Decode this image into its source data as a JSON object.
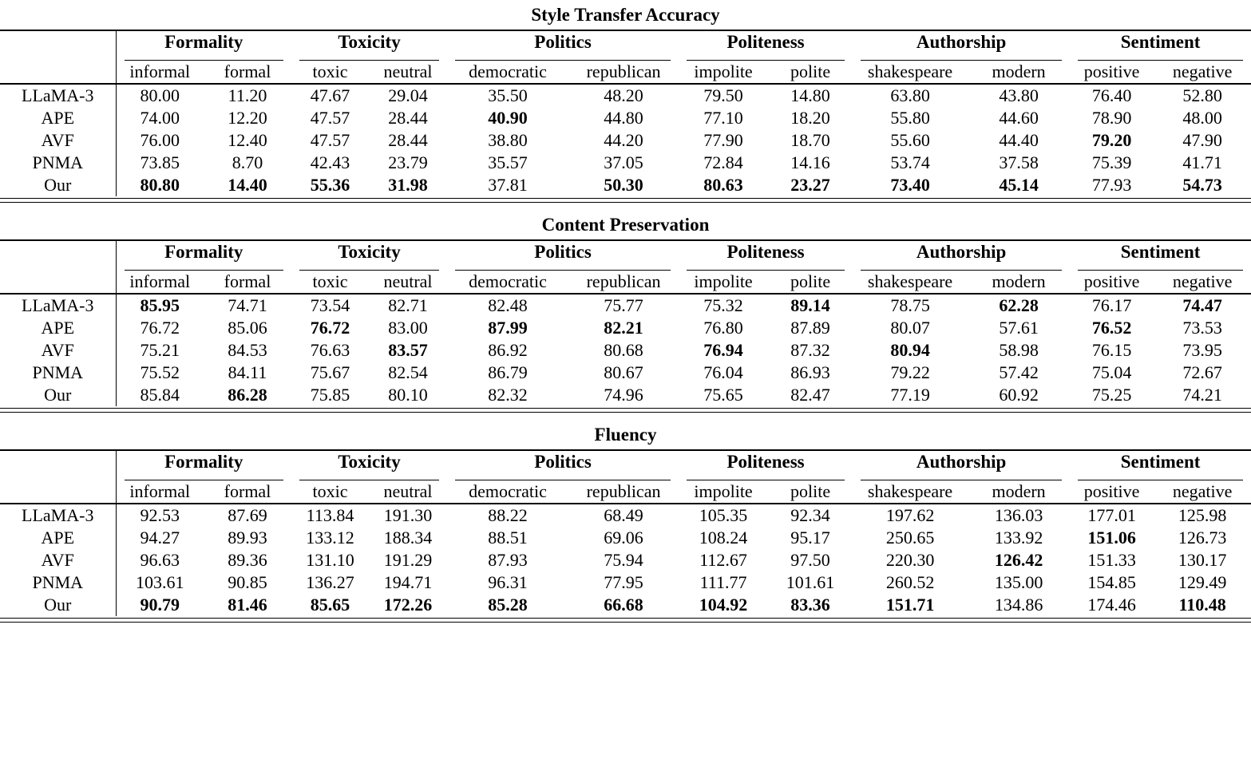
{
  "page": {
    "background_color": "#ffffff",
    "text_color": "#000000",
    "rule_color": "#000000"
  },
  "column_groups": [
    {
      "label": "Formality",
      "subcolumns": [
        "informal",
        "formal"
      ]
    },
    {
      "label": "Toxicity",
      "subcolumns": [
        "toxic",
        "neutral"
      ]
    },
    {
      "label": "Politics",
      "subcolumns": [
        "democratic",
        "republican"
      ]
    },
    {
      "label": "Politeness",
      "subcolumns": [
        "impolite",
        "polite"
      ]
    },
    {
      "label": "Authorship",
      "subcolumns": [
        "shakespeare",
        "modern"
      ]
    },
    {
      "label": "Sentiment",
      "subcolumns": [
        "positive",
        "negative"
      ]
    }
  ],
  "tables": [
    {
      "title": "Style Transfer Accuracy",
      "rows": [
        {
          "label": "LLaMA-3",
          "values": [
            "80.00",
            "11.20",
            "47.67",
            "29.04",
            "35.50",
            "48.20",
            "79.50",
            "14.80",
            "63.80",
            "43.80",
            "76.40",
            "52.80"
          ],
          "bold": [
            0,
            0,
            0,
            0,
            0,
            0,
            0,
            0,
            0,
            0,
            0,
            0
          ]
        },
        {
          "label": "APE",
          "values": [
            "74.00",
            "12.20",
            "47.57",
            "28.44",
            "40.90",
            "44.80",
            "77.10",
            "18.20",
            "55.80",
            "44.60",
            "78.90",
            "48.00"
          ],
          "bold": [
            0,
            0,
            0,
            0,
            1,
            0,
            0,
            0,
            0,
            0,
            0,
            0
          ]
        },
        {
          "label": "AVF",
          "values": [
            "76.00",
            "12.40",
            "47.57",
            "28.44",
            "38.80",
            "44.20",
            "77.90",
            "18.70",
            "55.60",
            "44.40",
            "79.20",
            "47.90"
          ],
          "bold": [
            0,
            0,
            0,
            0,
            0,
            0,
            0,
            0,
            0,
            0,
            1,
            0
          ]
        },
        {
          "label": "PNMA",
          "values": [
            "73.85",
            "8.70",
            "42.43",
            "23.79",
            "35.57",
            "37.05",
            "72.84",
            "14.16",
            "53.74",
            "37.58",
            "75.39",
            "41.71"
          ],
          "bold": [
            0,
            0,
            0,
            0,
            0,
            0,
            0,
            0,
            0,
            0,
            0,
            0
          ]
        },
        {
          "label": "Our",
          "values": [
            "80.80",
            "14.40",
            "55.36",
            "31.98",
            "37.81",
            "50.30",
            "80.63",
            "23.27",
            "73.40",
            "45.14",
            "77.93",
            "54.73"
          ],
          "bold": [
            1,
            1,
            1,
            1,
            0,
            1,
            1,
            1,
            1,
            1,
            0,
            1
          ]
        }
      ]
    },
    {
      "title": "Content Preservation",
      "rows": [
        {
          "label": "LLaMA-3",
          "values": [
            "85.95",
            "74.71",
            "73.54",
            "82.71",
            "82.48",
            "75.77",
            "75.32",
            "89.14",
            "78.75",
            "62.28",
            "76.17",
            "74.47"
          ],
          "bold": [
            1,
            0,
            0,
            0,
            0,
            0,
            0,
            1,
            0,
            1,
            0,
            1
          ]
        },
        {
          "label": "APE",
          "values": [
            "76.72",
            "85.06",
            "76.72",
            "83.00",
            "87.99",
            "82.21",
            "76.80",
            "87.89",
            "80.07",
            "57.61",
            "76.52",
            "73.53"
          ],
          "bold": [
            0,
            0,
            1,
            0,
            1,
            1,
            0,
            0,
            0,
            0,
            1,
            0
          ]
        },
        {
          "label": "AVF",
          "values": [
            "75.21",
            "84.53",
            "76.63",
            "83.57",
            "86.92",
            "80.68",
            "76.94",
            "87.32",
            "80.94",
            "58.98",
            "76.15",
            "73.95"
          ],
          "bold": [
            0,
            0,
            0,
            1,
            0,
            0,
            1,
            0,
            1,
            0,
            0,
            0
          ]
        },
        {
          "label": "PNMA",
          "values": [
            "75.52",
            "84.11",
            "75.67",
            "82.54",
            "86.79",
            "80.67",
            "76.04",
            "86.93",
            "79.22",
            "57.42",
            "75.04",
            "72.67"
          ],
          "bold": [
            0,
            0,
            0,
            0,
            0,
            0,
            0,
            0,
            0,
            0,
            0,
            0
          ]
        },
        {
          "label": "Our",
          "values": [
            "85.84",
            "86.28",
            "75.85",
            "80.10",
            "82.32",
            "74.96",
            "75.65",
            "82.47",
            "77.19",
            "60.92",
            "75.25",
            "74.21"
          ],
          "bold": [
            0,
            1,
            0,
            0,
            0,
            0,
            0,
            0,
            0,
            0,
            0,
            0
          ]
        }
      ]
    },
    {
      "title": "Fluency",
      "rows": [
        {
          "label": "LLaMA-3",
          "values": [
            "92.53",
            "87.69",
            "113.84",
            "191.30",
            "88.22",
            "68.49",
            "105.35",
            "92.34",
            "197.62",
            "136.03",
            "177.01",
            "125.98"
          ],
          "bold": [
            0,
            0,
            0,
            0,
            0,
            0,
            0,
            0,
            0,
            0,
            0,
            0
          ]
        },
        {
          "label": "APE",
          "values": [
            "94.27",
            "89.93",
            "133.12",
            "188.34",
            "88.51",
            "69.06",
            "108.24",
            "95.17",
            "250.65",
            "133.92",
            "151.06",
            "126.73"
          ],
          "bold": [
            0,
            0,
            0,
            0,
            0,
            0,
            0,
            0,
            0,
            0,
            1,
            0
          ]
        },
        {
          "label": "AVF",
          "values": [
            "96.63",
            "89.36",
            "131.10",
            "191.29",
            "87.93",
            "75.94",
            "112.67",
            "97.50",
            "220.30",
            "126.42",
            "151.33",
            "130.17"
          ],
          "bold": [
            0,
            0,
            0,
            0,
            0,
            0,
            0,
            0,
            0,
            1,
            0,
            0
          ]
        },
        {
          "label": "PNMA",
          "values": [
            "103.61",
            "90.85",
            "136.27",
            "194.71",
            "96.31",
            "77.95",
            "111.77",
            "101.61",
            "260.52",
            "135.00",
            "154.85",
            "129.49"
          ],
          "bold": [
            0,
            0,
            0,
            0,
            0,
            0,
            0,
            0,
            0,
            0,
            0,
            0
          ]
        },
        {
          "label": "Our",
          "values": [
            "90.79",
            "81.46",
            "85.65",
            "172.26",
            "85.28",
            "66.68",
            "104.92",
            "83.36",
            "151.71",
            "134.86",
            "174.46",
            "110.48"
          ],
          "bold": [
            1,
            1,
            1,
            1,
            1,
            1,
            1,
            1,
            1,
            0,
            0,
            1
          ]
        }
      ]
    }
  ]
}
